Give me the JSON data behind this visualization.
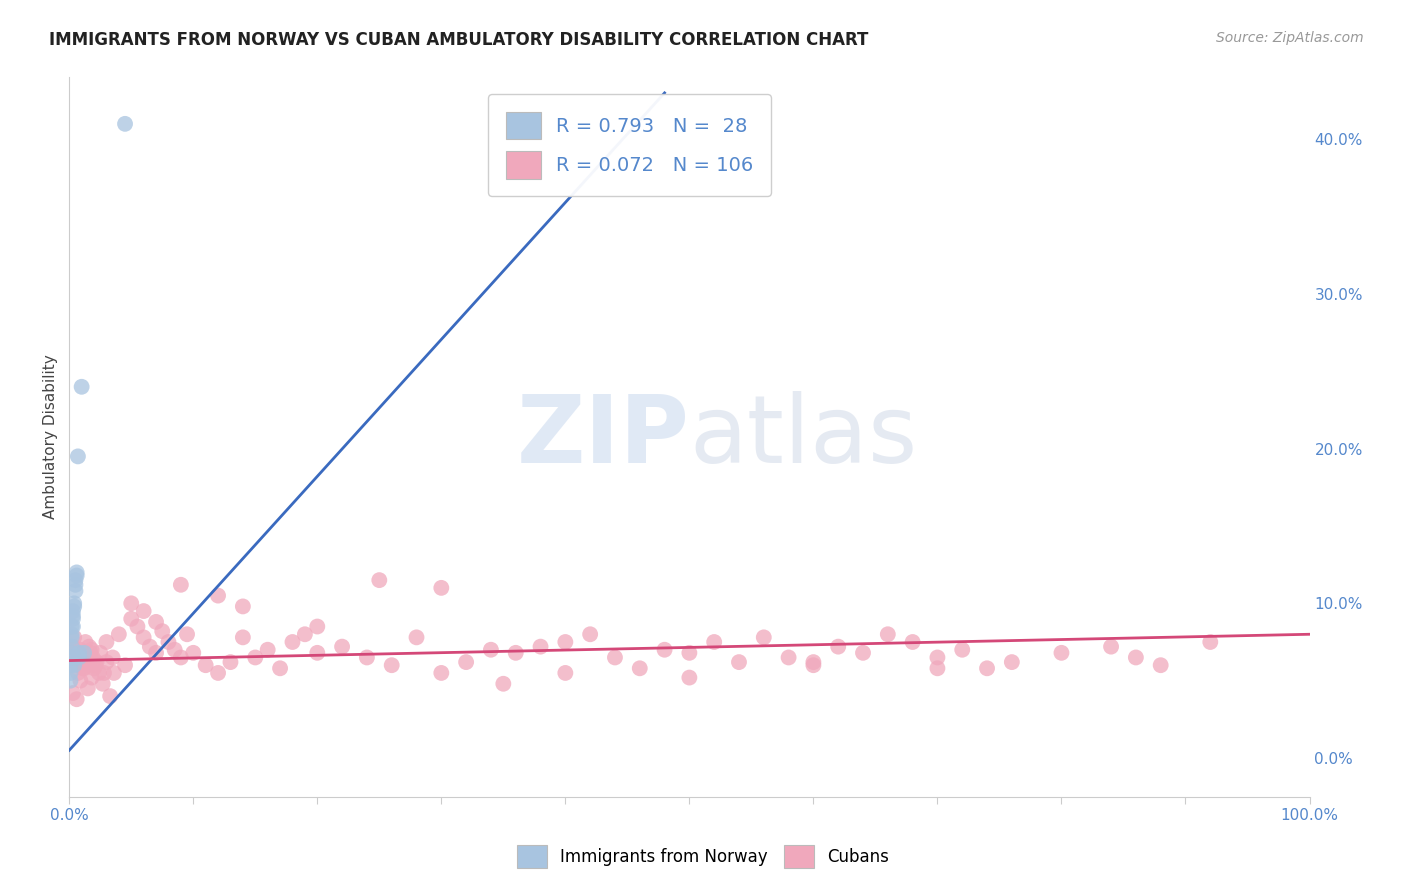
{
  "title": "IMMIGRANTS FROM NORWAY VS CUBAN AMBULATORY DISABILITY CORRELATION CHART",
  "source_text": "Source: ZipAtlas.com",
  "ylabel": "Ambulatory Disability",
  "xlim": [
    0,
    1.0
  ],
  "ylim": [
    -0.025,
    0.44
  ],
  "blue_R": 0.793,
  "blue_N": 28,
  "pink_R": 0.072,
  "pink_N": 106,
  "legend_label_blue": "Immigrants from Norway",
  "legend_label_pink": "Cubans",
  "background_color": "#ffffff",
  "blue_scatter_color": "#a8c4e0",
  "blue_line_color": "#3a6abf",
  "pink_scatter_color": "#f0a8bc",
  "pink_line_color": "#d44878",
  "grid_color": "#cccccc",
  "tick_color": "#5588cc",
  "title_color": "#222222",
  "norway_x": [
    0.001,
    0.001,
    0.001,
    0.001,
    0.002,
    0.002,
    0.002,
    0.002,
    0.002,
    0.003,
    0.003,
    0.003,
    0.003,
    0.004,
    0.004,
    0.004,
    0.004,
    0.005,
    0.005,
    0.005,
    0.006,
    0.006,
    0.007,
    0.008,
    0.008,
    0.01,
    0.012,
    0.045
  ],
  "norway_y": [
    0.055,
    0.06,
    0.065,
    0.05,
    0.068,
    0.072,
    0.078,
    0.08,
    0.085,
    0.09,
    0.092,
    0.095,
    0.085,
    0.098,
    0.1,
    0.06,
    0.065,
    0.108,
    0.112,
    0.115,
    0.118,
    0.12,
    0.195,
    0.065,
    0.068,
    0.24,
    0.068,
    0.41
  ],
  "cuban_x": [
    0.002,
    0.003,
    0.004,
    0.005,
    0.006,
    0.007,
    0.008,
    0.009,
    0.01,
    0.011,
    0.012,
    0.013,
    0.014,
    0.015,
    0.016,
    0.017,
    0.018,
    0.019,
    0.02,
    0.022,
    0.025,
    0.028,
    0.03,
    0.035,
    0.04,
    0.045,
    0.05,
    0.055,
    0.06,
    0.065,
    0.07,
    0.075,
    0.08,
    0.085,
    0.09,
    0.095,
    0.1,
    0.11,
    0.12,
    0.13,
    0.14,
    0.15,
    0.16,
    0.17,
    0.18,
    0.19,
    0.2,
    0.22,
    0.24,
    0.26,
    0.28,
    0.3,
    0.32,
    0.34,
    0.36,
    0.38,
    0.4,
    0.42,
    0.44,
    0.46,
    0.48,
    0.5,
    0.52,
    0.54,
    0.56,
    0.58,
    0.6,
    0.62,
    0.64,
    0.66,
    0.68,
    0.7,
    0.72,
    0.74,
    0.76,
    0.8,
    0.84,
    0.86,
    0.88,
    0.92,
    0.003,
    0.006,
    0.009,
    0.012,
    0.015,
    0.018,
    0.021,
    0.024,
    0.027,
    0.03,
    0.033,
    0.036,
    0.05,
    0.06,
    0.07,
    0.09,
    0.12,
    0.14,
    0.2,
    0.25,
    0.3,
    0.35,
    0.4,
    0.5,
    0.6,
    0.7
  ],
  "cuban_y": [
    0.068,
    0.072,
    0.078,
    0.062,
    0.065,
    0.055,
    0.06,
    0.07,
    0.068,
    0.058,
    0.062,
    0.075,
    0.065,
    0.06,
    0.072,
    0.068,
    0.07,
    0.065,
    0.058,
    0.062,
    0.068,
    0.055,
    0.075,
    0.065,
    0.08,
    0.06,
    0.09,
    0.085,
    0.078,
    0.072,
    0.068,
    0.082,
    0.075,
    0.07,
    0.065,
    0.08,
    0.068,
    0.06,
    0.055,
    0.062,
    0.078,
    0.065,
    0.07,
    0.058,
    0.075,
    0.08,
    0.068,
    0.072,
    0.065,
    0.06,
    0.078,
    0.055,
    0.062,
    0.07,
    0.068,
    0.072,
    0.075,
    0.08,
    0.065,
    0.058,
    0.07,
    0.068,
    0.075,
    0.062,
    0.078,
    0.065,
    0.06,
    0.072,
    0.068,
    0.08,
    0.075,
    0.065,
    0.07,
    0.058,
    0.062,
    0.068,
    0.072,
    0.065,
    0.06,
    0.075,
    0.042,
    0.038,
    0.05,
    0.058,
    0.045,
    0.052,
    0.06,
    0.055,
    0.048,
    0.062,
    0.04,
    0.055,
    0.1,
    0.095,
    0.088,
    0.112,
    0.105,
    0.098,
    0.085,
    0.115,
    0.11,
    0.048,
    0.055,
    0.052,
    0.062,
    0.058
  ],
  "blue_trend_x": [
    0.0,
    0.48
  ],
  "blue_trend_y": [
    0.005,
    0.43
  ],
  "pink_trend_x": [
    0.0,
    1.0
  ],
  "pink_trend_y": [
    0.063,
    0.08
  ]
}
